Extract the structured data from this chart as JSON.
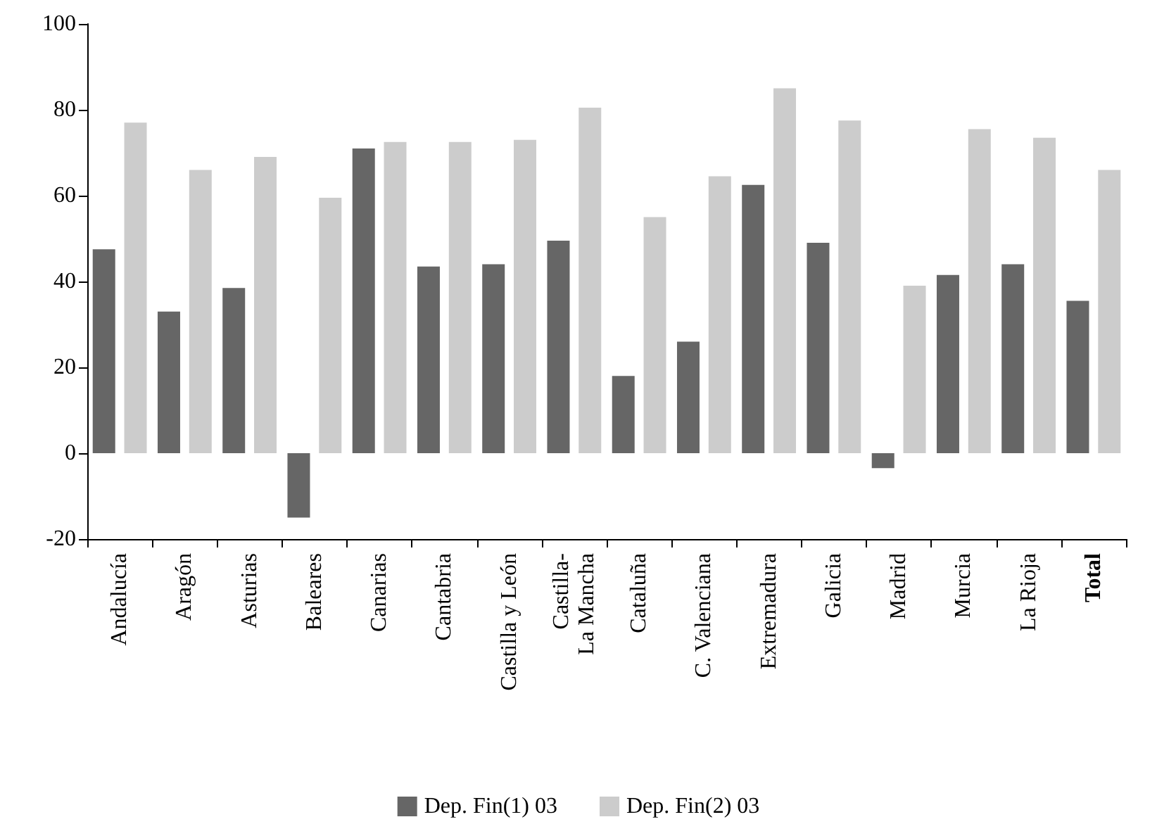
{
  "chart_data": {
    "type": "bar",
    "categories": [
      "Andalucía",
      "Aragón",
      "Asturias",
      "Baleares",
      "Canarias",
      "Cantabria",
      "Castilla y León",
      "Castilla-\nLa Mancha",
      "Cataluña",
      "C. Valenciana",
      "Extremadura",
      "Galicia",
      "Madrid",
      "Murcia",
      "La Rioja",
      "Total"
    ],
    "series": [
      {
        "name": "Dep. Fin(1) 03",
        "color": "#666666",
        "values": [
          47.5,
          33,
          38.5,
          -15,
          71,
          43.5,
          44,
          49.5,
          18,
          26,
          62.5,
          49,
          -3.5,
          41.5,
          44,
          35.5
        ]
      },
      {
        "name": "Dep. Fin(2) 03",
        "color": "#cccccc",
        "values": [
          77,
          66,
          69,
          59.5,
          72.5,
          72.5,
          73,
          80.5,
          55,
          64.5,
          85,
          77.5,
          39,
          75.5,
          73.5,
          66
        ]
      }
    ],
    "ylim": [
      -20,
      100
    ],
    "yticks": [
      -20,
      0,
      20,
      40,
      60,
      80,
      100
    ],
    "grid": false,
    "legend": "bottom"
  }
}
